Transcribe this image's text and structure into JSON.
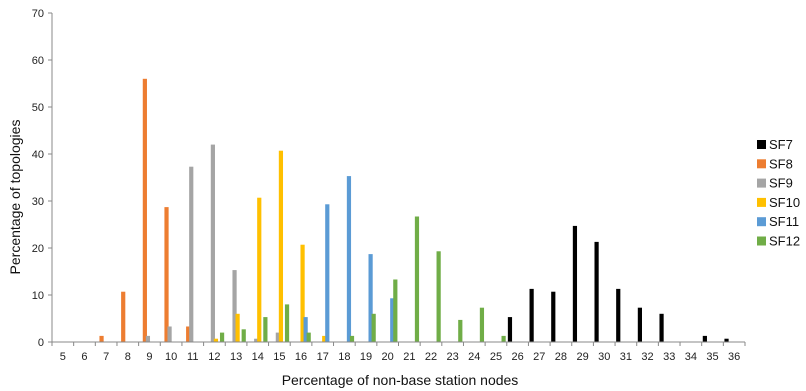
{
  "chart_data": {
    "type": "bar",
    "title": "",
    "xlabel": "Percentage of non-base station nodes",
    "ylabel": "Percentage of topologies",
    "ylim": [
      0,
      70
    ],
    "yticks": [
      0,
      10,
      20,
      30,
      40,
      50,
      60,
      70
    ],
    "categories": [
      "5",
      "6",
      "7",
      "8",
      "9",
      "10",
      "11",
      "12",
      "13",
      "14",
      "15",
      "16",
      "17",
      "18",
      "19",
      "20",
      "21",
      "22",
      "23",
      "24",
      "25",
      "26",
      "27",
      "28",
      "29",
      "30",
      "31",
      "32",
      "33",
      "34",
      "35",
      "36"
    ],
    "grid": false,
    "legend_position": "right",
    "series": [
      {
        "name": "SF7",
        "color": "#000000",
        "values": [
          0,
          0,
          0,
          0,
          0,
          0,
          0,
          0,
          0,
          0,
          0,
          0,
          0,
          0,
          0,
          0,
          0,
          0,
          0,
          0,
          0,
          5.3,
          11.3,
          10.7,
          24.7,
          21.3,
          11.3,
          7.3,
          6.0,
          0,
          1.3,
          0.7
        ]
      },
      {
        "name": "SF8",
        "color": "#ED7D31",
        "values": [
          0,
          0,
          1.3,
          10.7,
          56.0,
          28.7,
          3.3,
          0,
          0,
          0,
          0,
          0,
          0,
          0,
          0,
          0,
          0,
          0,
          0,
          0,
          0,
          0,
          0,
          0,
          0,
          0,
          0,
          0,
          0,
          0,
          0,
          0
        ]
      },
      {
        "name": "SF9",
        "color": "#A5A5A5",
        "values": [
          0,
          0,
          0,
          0,
          1.3,
          3.3,
          37.3,
          42.0,
          15.3,
          0.7,
          2.0,
          0,
          0,
          0,
          0,
          0,
          0,
          0,
          0,
          0,
          0,
          0,
          0,
          0,
          0,
          0,
          0,
          0,
          0,
          0,
          0,
          0
        ]
      },
      {
        "name": "SF10",
        "color": "#FFC000",
        "values": [
          0,
          0,
          0,
          0,
          0,
          0,
          0,
          0.7,
          6.0,
          30.7,
          40.7,
          20.7,
          1.3,
          0,
          0,
          0,
          0,
          0,
          0,
          0,
          0,
          0,
          0,
          0,
          0,
          0,
          0,
          0,
          0,
          0,
          0,
          0
        ]
      },
      {
        "name": "SF11",
        "color": "#5B9BD5",
        "values": [
          0,
          0,
          0,
          0,
          0,
          0,
          0,
          0,
          0,
          0,
          0,
          5.3,
          29.3,
          35.3,
          18.7,
          9.3,
          0,
          0,
          0,
          0,
          0,
          0,
          0,
          0,
          0,
          0,
          0,
          0,
          0,
          0,
          0,
          0
        ]
      },
      {
        "name": "SF12",
        "color": "#70AD47",
        "values": [
          0,
          0,
          0,
          0,
          0,
          0,
          0,
          2.0,
          2.7,
          5.3,
          8.0,
          2.0,
          0,
          1.3,
          6.0,
          13.3,
          26.7,
          19.3,
          4.7,
          7.3,
          1.3,
          0,
          0,
          0,
          0,
          0,
          0,
          0,
          0,
          0,
          0,
          0
        ]
      }
    ]
  }
}
